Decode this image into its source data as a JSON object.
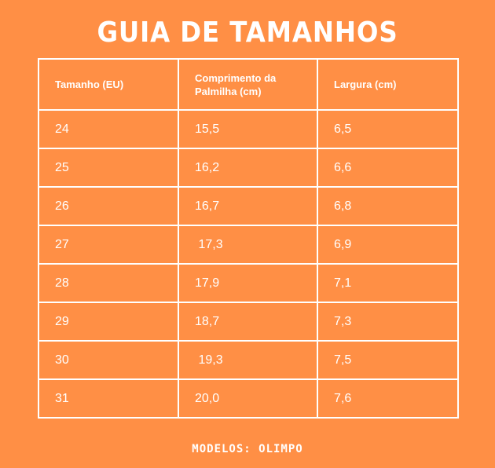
{
  "page": {
    "title": "GUIA DE TAMANHOS",
    "footer": "MODELOS: OLIMPO",
    "colors": {
      "background": "#FF8F45",
      "text_and_lines": "#FFFFFF"
    }
  },
  "table": {
    "headers": [
      "Tamanho (EU)",
      "Comprimento da Palmilha (cm)",
      "Largura (cm)"
    ],
    "rows": [
      [
        "24",
        "15,5",
        "6,5"
      ],
      [
        "25",
        "16,2",
        "6,6"
      ],
      [
        "26",
        "16,7",
        "6,8"
      ],
      [
        "27",
        " 17,3",
        "6,9"
      ],
      [
        "28",
        "17,9",
        "7,1"
      ],
      [
        "29",
        "18,7",
        "7,3"
      ],
      [
        "30",
        " 19,3",
        "7,5"
      ],
      [
        "31",
        "20,0",
        "7,6"
      ]
    ]
  }
}
